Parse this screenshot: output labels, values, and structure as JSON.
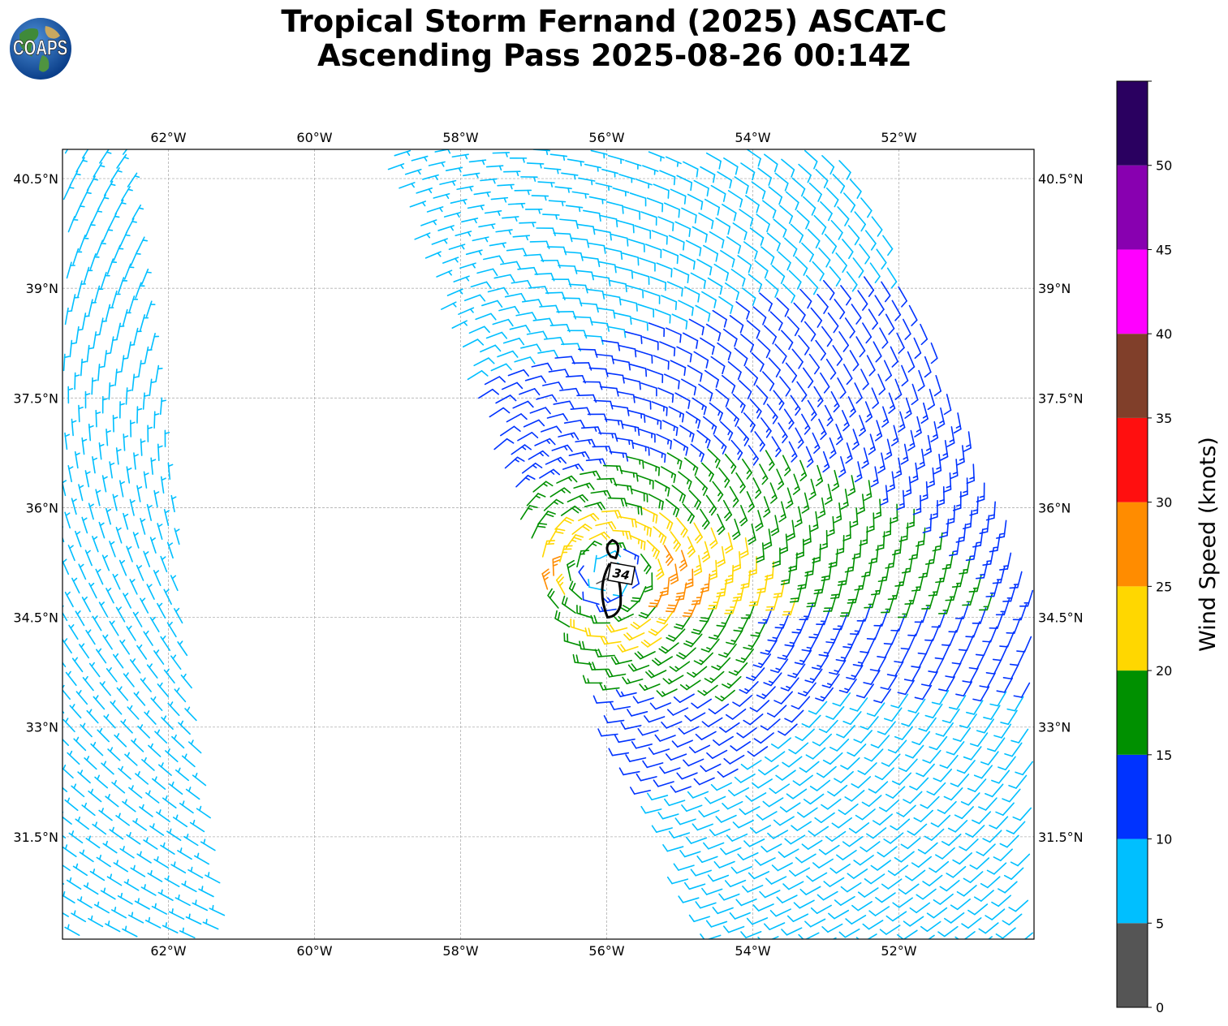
{
  "logo_text": "COAPS",
  "title": {
    "line1": "Tropical Storm Fernand (2025) ASCAT-C",
    "line2": "Ascending Pass 2025-08-26 00:14Z"
  },
  "chart_data": {
    "type": "wind-barb-map",
    "title": "Tropical Storm Fernand (2025) ASCAT-C Ascending Pass 2025-08-26 00:14Z",
    "lon_range": [
      -63.45,
      -50.15
    ],
    "lat_range": [
      30.1,
      40.9
    ],
    "lon_ticks": [
      {
        "value": -62,
        "label": "62°W"
      },
      {
        "value": -60,
        "label": "60°W"
      },
      {
        "value": -58,
        "label": "58°W"
      },
      {
        "value": -56,
        "label": "56°W"
      },
      {
        "value": -54,
        "label": "54°W"
      },
      {
        "value": -52,
        "label": "52°W"
      }
    ],
    "lat_ticks": [
      {
        "value": 40.5,
        "label": "40.5°N"
      },
      {
        "value": 39,
        "label": "39°N"
      },
      {
        "value": 37.5,
        "label": "37.5°N"
      },
      {
        "value": 36,
        "label": "36°N"
      },
      {
        "value": 34.5,
        "label": "34.5°N"
      },
      {
        "value": 33,
        "label": "33°N"
      },
      {
        "value": 31.5,
        "label": "31.5°N"
      }
    ],
    "gridlines": true,
    "storm_center": {
      "lon": -55.9,
      "lat": 35.0
    },
    "contour": {
      "label": "34",
      "units": "knots"
    },
    "swaths": [
      {
        "name": "west",
        "corners_lonlat": [
          [
            -63.45,
            40.9
          ],
          [
            -62.6,
            40.9
          ],
          [
            -61.1,
            30.1
          ],
          [
            -63.45,
            30.1
          ]
        ]
      },
      {
        "name": "east",
        "corners_lonlat": [
          [
            -59.1,
            40.9
          ],
          [
            -52.7,
            40.9
          ],
          [
            -50.15,
            35.0
          ],
          [
            -50.15,
            30.1
          ],
          [
            -54.5,
            30.1
          ],
          [
            -56.8,
            34.8
          ]
        ]
      }
    ],
    "colorbar": {
      "label": "Wind Speed (knots)",
      "ticks": [
        0,
        5,
        10,
        15,
        20,
        25,
        30,
        35,
        40,
        45,
        50
      ],
      "bins": [
        {
          "min": 0,
          "max": 5,
          "color": "#555555"
        },
        {
          "min": 5,
          "max": 10,
          "color": "#00bfff"
        },
        {
          "min": 10,
          "max": 15,
          "color": "#0033ff"
        },
        {
          "min": 15,
          "max": 20,
          "color": "#009000"
        },
        {
          "min": 20,
          "max": 25,
          "color": "#ffd700"
        },
        {
          "min": 25,
          "max": 30,
          "color": "#ff8c00"
        },
        {
          "min": 30,
          "max": 35,
          "color": "#ff0f0f"
        },
        {
          "min": 35,
          "max": 40,
          "color": "#803f2a"
        },
        {
          "min": 40,
          "max": 45,
          "color": "#ff00ff"
        },
        {
          "min": 45,
          "max": 50,
          "color": "#8800b0"
        },
        {
          "min": 50,
          "max": 55,
          "color": "#2a0060"
        }
      ]
    }
  }
}
